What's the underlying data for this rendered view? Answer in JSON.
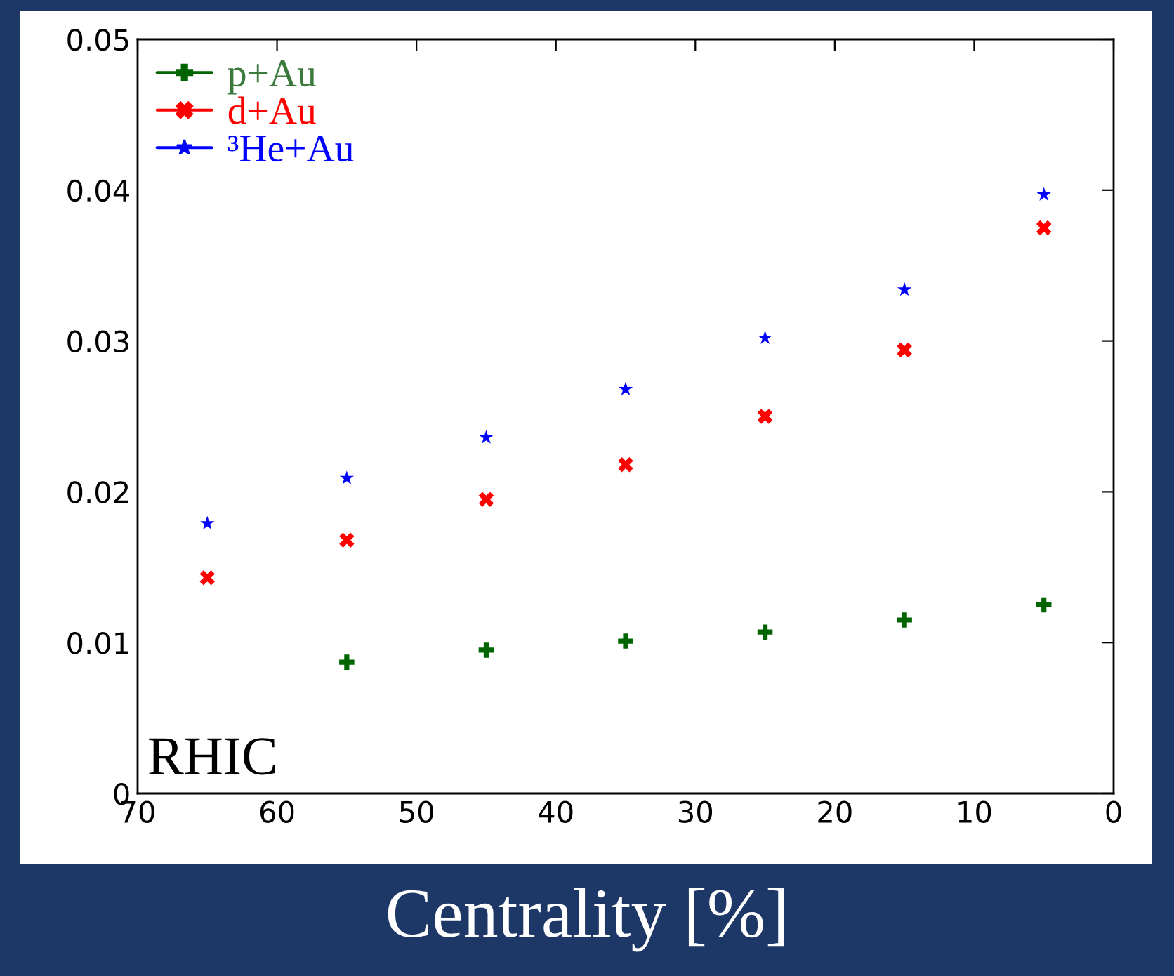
{
  "chart_data": {
    "type": "scatter",
    "xlabel": "Centrality [%]",
    "x": [
      65,
      55,
      45,
      35,
      25,
      15,
      5
    ],
    "series": [
      {
        "name": "p+Au",
        "color": "#006400",
        "marker": "plus",
        "values": [
          null,
          0.0087,
          0.0095,
          0.0101,
          0.0107,
          0.0115,
          0.0125
        ]
      },
      {
        "name": "d+Au",
        "color": "#ff0000",
        "marker": "cross",
        "values": [
          0.0143,
          0.0168,
          0.0195,
          0.0218,
          0.025,
          0.0294,
          0.0375
        ]
      },
      {
        "name": "³He+Au",
        "color": "#0000ff",
        "marker": "star",
        "values": [
          0.0179,
          0.0209,
          0.0236,
          0.0268,
          0.0302,
          0.0334,
          0.0397
        ]
      }
    ],
    "xlim": [
      70,
      0
    ],
    "xticks": [
      70,
      60,
      50,
      40,
      30,
      20,
      10,
      0
    ],
    "ylim": [
      0,
      0.05
    ],
    "yticks": [
      0,
      0.01,
      0.02,
      0.03,
      0.04,
      0.05
    ],
    "annotations": [
      "RHIC"
    ],
    "legend": "top left",
    "grid": false
  }
}
